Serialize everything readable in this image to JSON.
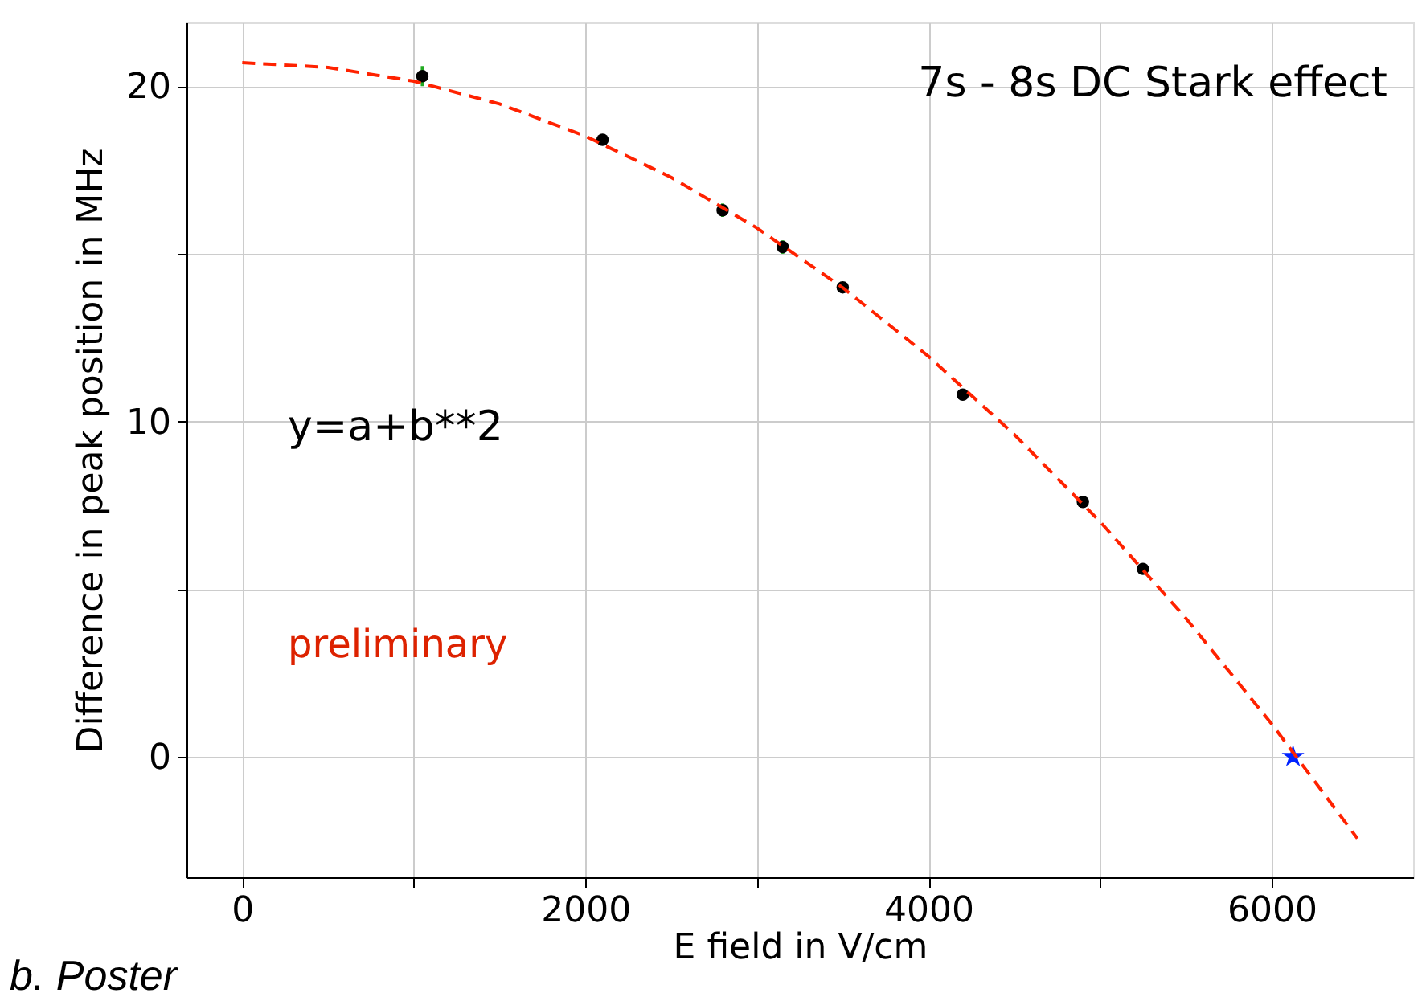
{
  "chart_data": {
    "type": "scatter",
    "xlabel": "E field in V/cm",
    "ylabel": "Difference in peak position in MHz",
    "annotations": [
      "7s - 8s DC Stark effect",
      "y=a+b**2",
      "preliminary",
      "b. Poster"
    ],
    "series": [
      {
        "color": "#000000",
        "marker": "circle",
        "x": [
          1050,
          2100,
          2800,
          3150,
          3500,
          4200,
          4900,
          5250
        ],
        "values": [
          20.3,
          18.4,
          16.3,
          15.2,
          14.0,
          10.8,
          7.6,
          5.6
        ],
        "errors": [
          0.3,
          null,
          0.2,
          0.2,
          null,
          null,
          null,
          null
        ]
      },
      {
        "color": "#0022ff",
        "marker": "star",
        "x": [
          6125
        ],
        "values": [
          0
        ]
      },
      {
        "type": "line",
        "color": "#ff2200",
        "line_style": "dashed",
        "x": [
          0,
          500,
          1000,
          1500,
          2000,
          2500,
          3000,
          3500,
          4000,
          4500,
          5000,
          5500,
          6000,
          6500
        ],
        "values": [
          20.7,
          20.56,
          20.15,
          19.47,
          18.51,
          17.28,
          15.77,
          13.99,
          11.94,
          9.61,
          7.01,
          4.13,
          0.98,
          -2.44
        ]
      }
    ],
    "xlim": [
      -325,
      6825
    ],
    "xticks": [
      0,
      {
        "value": 1000,
        "label": null
      },
      2000,
      {
        "value": 3000,
        "label": null
      },
      4000,
      {
        "value": 5000,
        "label": null
      },
      6000
    ],
    "ylim": [
      -3.6,
      21.9
    ],
    "yticks": [
      0,
      {
        "value": 5,
        "label": null
      },
      10,
      {
        "value": 15,
        "label": null
      },
      20
    ],
    "grid": true
  }
}
